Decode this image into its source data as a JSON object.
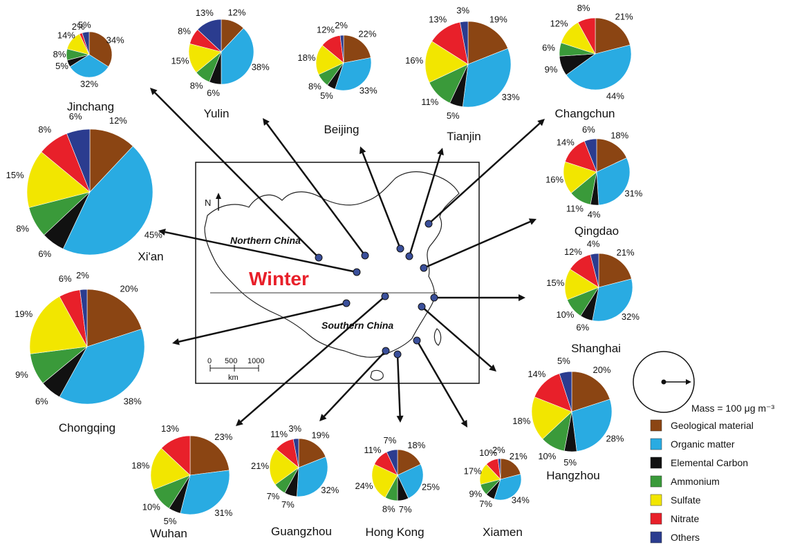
{
  "title": "Winter",
  "map": {
    "north_label": "N",
    "regions": [
      "Northern China",
      "Southern China"
    ],
    "scale_ticks": [
      "0",
      "500",
      "1000"
    ],
    "scale_unit": "km"
  },
  "legend": {
    "mass_label": "Mass = 100 μg m⁻³",
    "items": [
      {
        "name": "Geological material",
        "color": "#8B4513"
      },
      {
        "name": "Organic matter",
        "color": "#29ABE2"
      },
      {
        "name": "Elemental Carbon",
        "color": "#111111"
      },
      {
        "name": "Ammonium",
        "color": "#3A9A3A"
      },
      {
        "name": "Sulfate",
        "color": "#F2E600"
      },
      {
        "name": "Nitrate",
        "color": "#E8202A"
      },
      {
        "name": "Others",
        "color": "#2B3C8F"
      }
    ]
  },
  "chart_data": {
    "type": "pie",
    "components": [
      "Geological material",
      "Organic matter",
      "Elemental Carbon",
      "Ammonium",
      "Sulfate",
      "Nitrate",
      "Others"
    ],
    "unit": "%",
    "cities": [
      {
        "name": "Jinchang",
        "values": [
          34,
          32,
          5,
          8,
          14,
          2,
          5
        ]
      },
      {
        "name": "Yulin",
        "values": [
          12,
          38,
          6,
          8,
          15,
          8,
          13
        ]
      },
      {
        "name": "Beijing",
        "values": [
          22,
          33,
          5,
          8,
          18,
          12,
          2
        ]
      },
      {
        "name": "Tianjin",
        "values": [
          19,
          33,
          5,
          11,
          16,
          13,
          3
        ]
      },
      {
        "name": "Changchun",
        "values": [
          21,
          44,
          9,
          6,
          12,
          8,
          0
        ]
      },
      {
        "name": "Xi'an",
        "values": [
          12,
          45,
          6,
          8,
          15,
          8,
          6
        ]
      },
      {
        "name": "Qingdao",
        "values": [
          18,
          31,
          4,
          11,
          16,
          14,
          6
        ]
      },
      {
        "name": "Chongqing",
        "values": [
          20,
          38,
          6,
          9,
          19,
          6,
          2
        ]
      },
      {
        "name": "Shanghai",
        "values": [
          21,
          32,
          6,
          10,
          15,
          12,
          4
        ]
      },
      {
        "name": "Hangzhou",
        "values": [
          20,
          28,
          5,
          10,
          18,
          14,
          5
        ]
      },
      {
        "name": "Wuhan",
        "values": [
          23,
          31,
          5,
          10,
          18,
          13,
          0
        ]
      },
      {
        "name": "Guangzhou",
        "values": [
          19,
          32,
          7,
          7,
          21,
          11,
          3
        ]
      },
      {
        "name": "Hong Kong",
        "values": [
          18,
          25,
          7,
          8,
          24,
          11,
          7
        ]
      },
      {
        "name": "Xiamen",
        "values": [
          21,
          34,
          7,
          9,
          17,
          10,
          2
        ]
      }
    ]
  }
}
